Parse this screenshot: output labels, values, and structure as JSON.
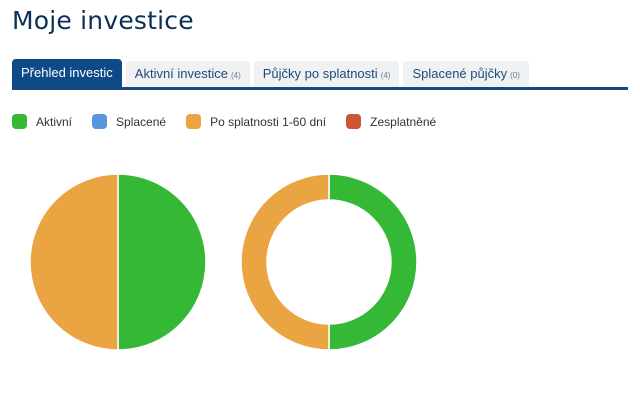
{
  "page": {
    "title": "Moje investice"
  },
  "tabs": [
    {
      "label": "Přehled investic",
      "count": "",
      "active": true
    },
    {
      "label": "Aktivní investice",
      "count": "(4)",
      "active": false
    },
    {
      "label": "Půjčky po splatnosti",
      "count": "(4)",
      "active": false
    },
    {
      "label": "Splacené půjčky",
      "count": "(0)",
      "active": false
    }
  ],
  "legend": [
    {
      "label": "Aktivní",
      "color": "#36b837"
    },
    {
      "label": "Splacené",
      "color": "#5b96dc"
    },
    {
      "label": "Po splatnosti 1-60 dní",
      "color": "#eaa441"
    },
    {
      "label": "Zesplatněné",
      "color": "#cc5533"
    }
  ],
  "chart_data": [
    {
      "type": "pie",
      "title": "",
      "categories": [
        "Aktivní",
        "Splacené",
        "Po splatnosti 1-60 dní",
        "Zesplatněné"
      ],
      "values": [
        50,
        0,
        50,
        0
      ],
      "colors": [
        "#36b837",
        "#5b96dc",
        "#eaa441",
        "#cc5533"
      ]
    },
    {
      "type": "pie",
      "variant": "donut",
      "title": "",
      "categories": [
        "Aktivní",
        "Splacené",
        "Po splatnosti 1-60 dní",
        "Zesplatněné"
      ],
      "values": [
        50,
        0,
        50,
        0
      ],
      "colors": [
        "#36b837",
        "#5b96dc",
        "#eaa441",
        "#cc5533"
      ]
    }
  ]
}
